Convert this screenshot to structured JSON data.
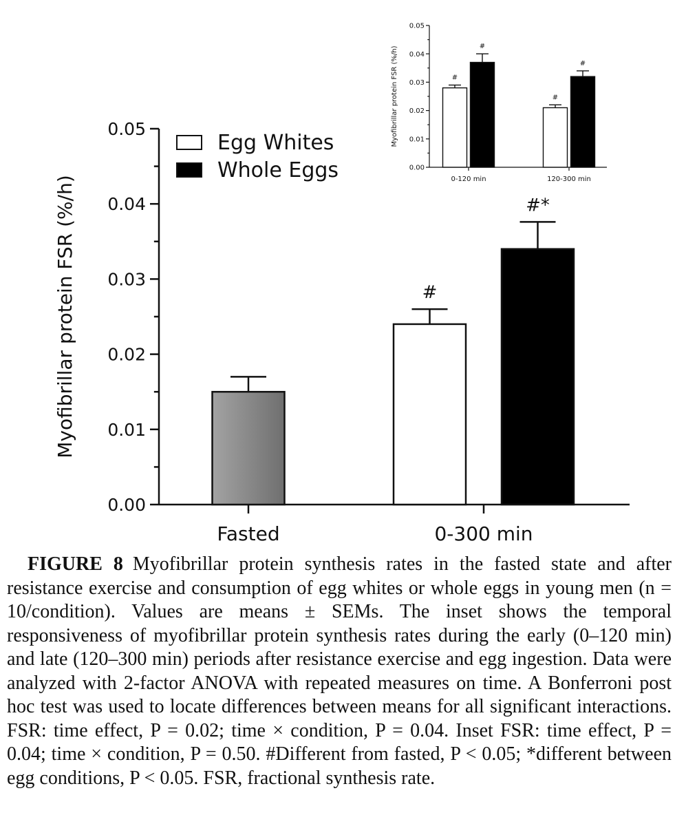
{
  "chart_data": [
    {
      "type": "bar",
      "ylabel": "Myofibrillar protein FSR (%/h)",
      "ylim": [
        0,
        0.05
      ],
      "yticks": [
        "0.00",
        "0.01",
        "0.02",
        "0.03",
        "0.04",
        "0.05"
      ],
      "categories": [
        "Fasted",
        "0-300 min"
      ],
      "series": [
        {
          "name": "Fasted",
          "values": [
            0.015,
            null
          ],
          "errors": [
            0.002,
            null
          ],
          "color": "#8a8a8a",
          "annotations": [
            "",
            ""
          ]
        },
        {
          "name": "Egg Whites",
          "values": [
            null,
            0.024
          ],
          "errors": [
            null,
            0.002
          ],
          "color": "#ffffff",
          "annotations": [
            "",
            "#"
          ]
        },
        {
          "name": "Whole Eggs",
          "values": [
            null,
            0.034
          ],
          "errors": [
            null,
            0.0036
          ],
          "color": "#000000",
          "annotations": [
            "",
            "#*"
          ]
        }
      ],
      "legend": {
        "placement": "top-left",
        "entries": [
          "Egg Whites",
          "Whole Eggs"
        ]
      }
    },
    {
      "type": "bar",
      "ylabel": "Myofibrillar protein FSR (%/h)",
      "ylim": [
        0,
        0.05
      ],
      "yticks": [
        "0.00",
        "0.01",
        "0.02",
        "0.03",
        "0.04",
        "0.05"
      ],
      "categories": [
        "0-120 min",
        "120-300 min"
      ],
      "series": [
        {
          "name": "Egg Whites",
          "values": [
            0.028,
            0.021
          ],
          "errors": [
            0.001,
            0.001
          ],
          "color": "#ffffff",
          "annotations": [
            "#",
            "#"
          ]
        },
        {
          "name": "Whole Eggs",
          "values": [
            0.037,
            0.032
          ],
          "errors": [
            0.003,
            0.002
          ],
          "color": "#000000",
          "annotations": [
            "#",
            "#"
          ]
        }
      ]
    }
  ],
  "caption": {
    "label": "FIGURE 8",
    "text": "Myofibrillar protein synthesis rates in the fasted state and after resistance exercise and consumption of egg whites or whole eggs in young men (n = 10/condition). Values are means ± SEMs. The inset shows the temporal responsiveness of myofibrillar protein synthesis rates during the early (0–120 min) and late (120–300 min) periods after resistance exercise and egg ingestion. Data were analyzed with 2-factor ANOVA with repeated measures on time. A Bonferroni post hoc test was used to locate differences between means for all significant interactions. FSR: time effect, P = 0.02; time × condition, P = 0.04. Inset FSR: time effect, P = 0.04; time × condition, P = 0.50. #Different from fasted, P < 0.05; *different between egg conditions, P < 0.05. FSR, fractional synthesis rate."
  }
}
